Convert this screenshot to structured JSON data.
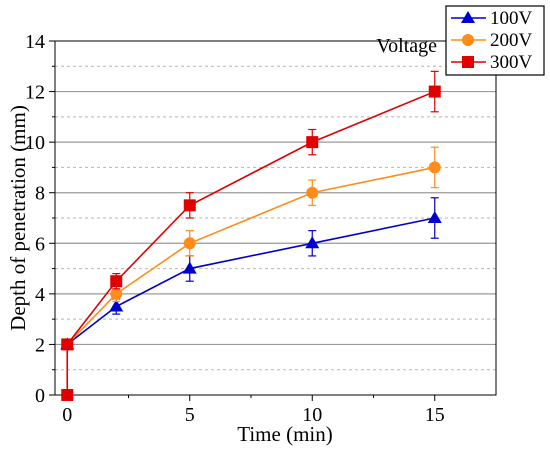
{
  "chart_data": {
    "type": "line",
    "title": "",
    "xlabel": "Time (min)",
    "ylabel": "Depth of penetration (mm)",
    "xlim": [
      -0.5,
      17.5
    ],
    "ylim": [
      0,
      14
    ],
    "x_ticks": [
      0,
      5,
      10,
      15
    ],
    "x_tick_labels": [
      "0",
      "5",
      "10",
      "15"
    ],
    "y_ticks": [
      0,
      2,
      4,
      6,
      8,
      10,
      12,
      14
    ],
    "y_tick_labels": [
      "0",
      "2",
      "4",
      "6",
      "8",
      "10",
      "12",
      "14"
    ],
    "grid": "horizontal",
    "legend_title": "Voltage",
    "legend_position": "top-right",
    "series": [
      {
        "name": "100V",
        "color": "#0000cc",
        "marker": "triangle",
        "x": [
          0,
          2,
          5,
          10,
          15
        ],
        "y": [
          2,
          3.5,
          5,
          6,
          7
        ],
        "error": [
          0,
          0.3,
          0.5,
          0.5,
          0.8
        ]
      },
      {
        "name": "200V",
        "color": "#ff8c1a",
        "marker": "circle",
        "x": [
          0,
          2,
          5,
          10,
          15
        ],
        "y": [
          2,
          4,
          6,
          8,
          9
        ],
        "error": [
          0,
          0.3,
          0.5,
          0.5,
          0.8
        ]
      },
      {
        "name": "300V",
        "color": "#e00000",
        "marker": "square",
        "x": [
          0,
          0,
          2,
          5,
          10,
          15
        ],
        "y": [
          0,
          2,
          4.5,
          7.5,
          10,
          12
        ],
        "error": [
          0,
          0,
          0.3,
          0.5,
          0.5,
          0.8
        ]
      }
    ]
  }
}
